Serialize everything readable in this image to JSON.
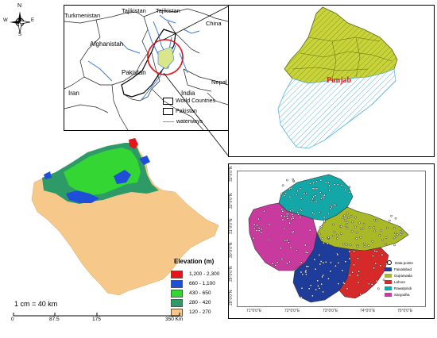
{
  "compass": {
    "north": "N",
    "south": "S",
    "east": "E",
    "west": "W"
  },
  "inset_map": {
    "countries": [
      "Turkmenistan",
      "Tajikistan",
      "Tajikistan",
      "China",
      "Afghanistan",
      "Pakistan",
      "Iran",
      "India",
      "Nepal"
    ],
    "legend": [
      {
        "label": "World Countries",
        "symbol": "box"
      },
      {
        "label": "Pakistan",
        "symbol": "box"
      },
      {
        "label": "waterways",
        "symbol": "line",
        "color": "#5b9bd5"
      }
    ]
  },
  "punjab_map": {
    "label": "Punjab",
    "label_color": "#e02020",
    "north_fill": "#c8d43a",
    "south_hatch": "#5ab4d6"
  },
  "elevation_map": {
    "legend_title": "Elevation (m)",
    "classes": [
      {
        "range": "1,200 - 2,300",
        "color": "#e8141c"
      },
      {
        "range": "660 - 1,100",
        "color": "#1f4fd8"
      },
      {
        "range": "430 - 650",
        "color": "#34d634"
      },
      {
        "range": "280 - 420",
        "color": "#2e9a68"
      },
      {
        "range": "120 - 270",
        "color": "#f6c98a"
      }
    ],
    "scale_text": "1 cm = 40 km",
    "scale_ticks": [
      "0",
      "87.5",
      "175",
      "350 Km"
    ]
  },
  "division_map": {
    "lat_labels": [
      "33°0'0\"N",
      "32°0'0\"N",
      "31°0'0\"N",
      "30°0'0\"N",
      "29°0'0\"N",
      "28°0'0\"N"
    ],
    "lon_labels": [
      "71°0'0\"E",
      "72°0'0\"E",
      "73°0'0\"E",
      "74°0'0\"E",
      "75°0'0\"E"
    ],
    "legend": [
      {
        "label": "Data points",
        "color": "#ffffff",
        "symbol": "point"
      },
      {
        "label": "Faisalabad",
        "color": "#1e3c9a"
      },
      {
        "label": "Gujranwala",
        "color": "#a8b826"
      },
      {
        "label": "Lahore",
        "color": "#d62a2a"
      },
      {
        "label": "Rawalpindi",
        "color": "#14a7a7"
      },
      {
        "label": "Sargodha",
        "color": "#c93a9e"
      }
    ]
  }
}
